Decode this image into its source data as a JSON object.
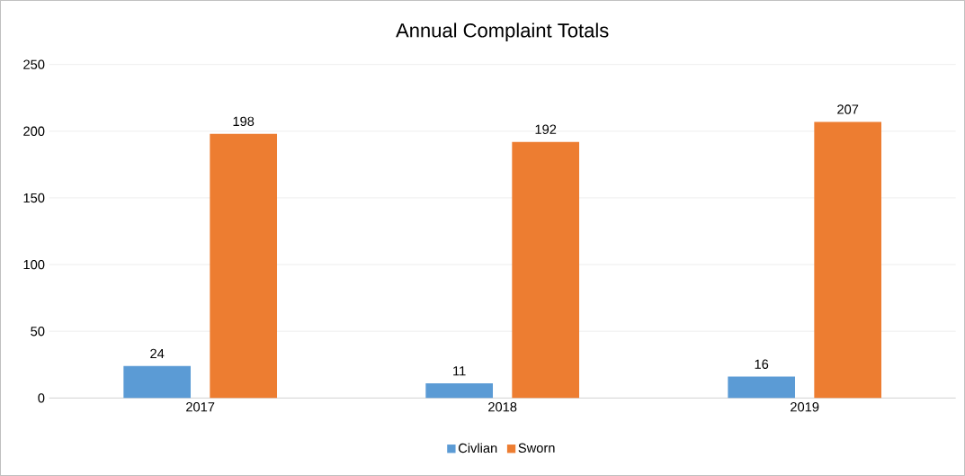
{
  "chart_data": {
    "type": "bar",
    "title": "Annual Complaint Totals",
    "categories": [
      "2017",
      "2018",
      "2019"
    ],
    "series": [
      {
        "name": "Civlian",
        "color": "#5b9bd5",
        "values": [
          24,
          11,
          16
        ]
      },
      {
        "name": "Sworn",
        "color": "#ed7d31",
        "values": [
          198,
          192,
          207
        ]
      }
    ],
    "ylim": [
      0,
      250
    ],
    "yticks": [
      0,
      50,
      100,
      150,
      200,
      250
    ],
    "grid": "y",
    "legend": "bottom",
    "data_labels": true
  }
}
